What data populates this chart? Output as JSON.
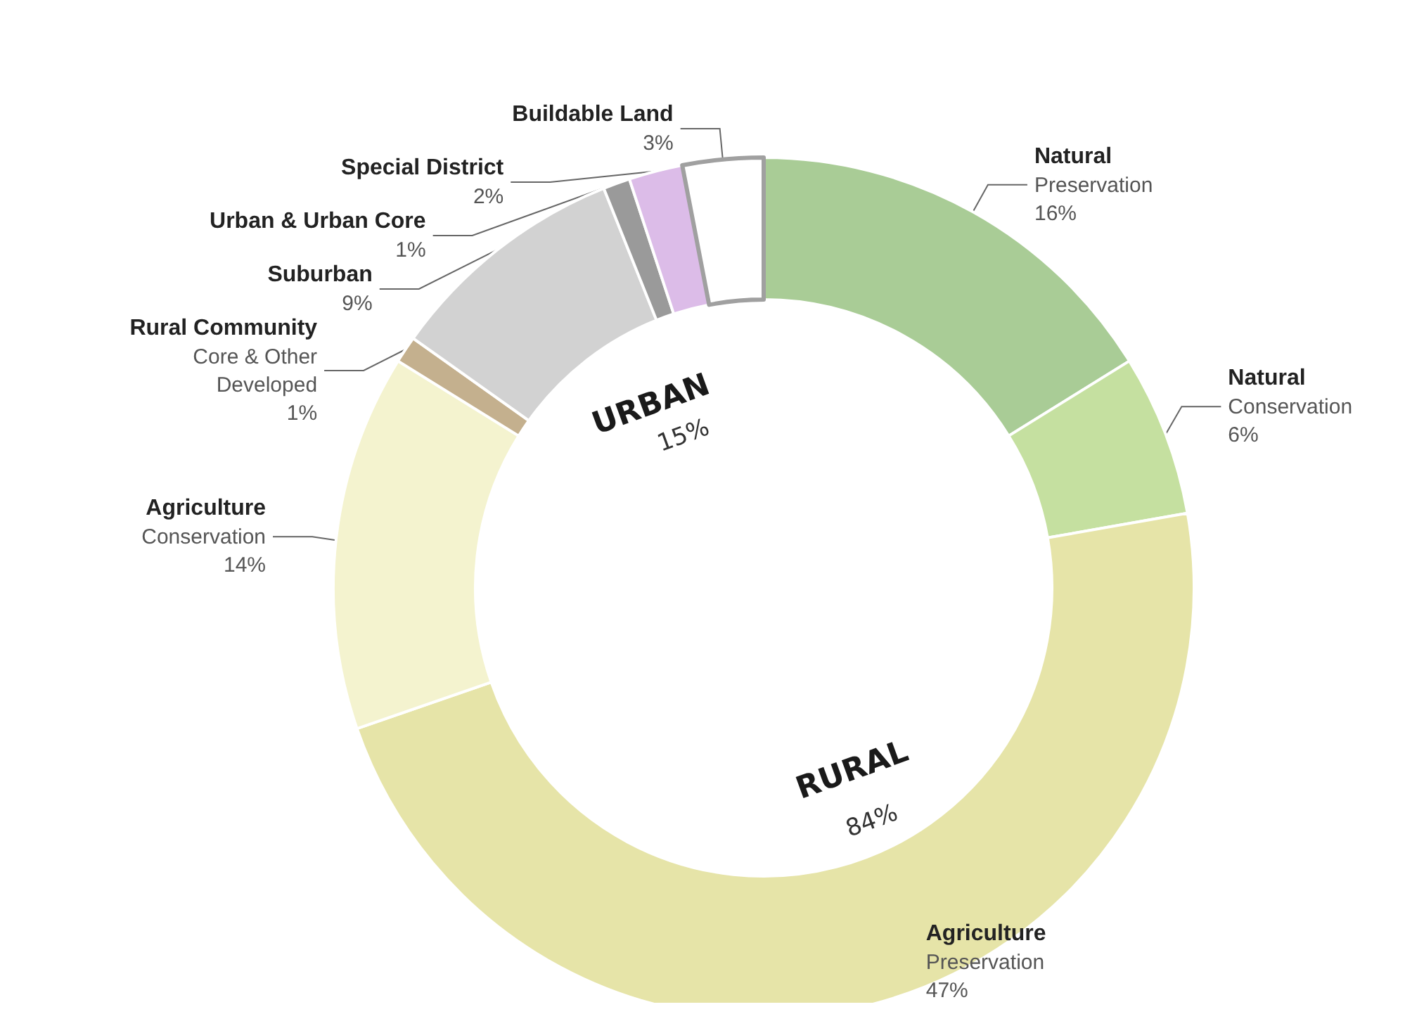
{
  "chart_data": {
    "type": "donut",
    "categories": [
      "Natural\nPreservation",
      "Natural\nConservation",
      "Agriculture\nPreservation",
      "Agriculture\nConservation",
      "Rural Community\nCore & Other\nDeveloped",
      "Suburban",
      "Urban & Urban Core",
      "Special District",
      "Buildable Land"
    ],
    "values": [
      16,
      6,
      47,
      14,
      1,
      9,
      1,
      2,
      3
    ],
    "value_labels": [
      "16%",
      "6%",
      "47%",
      "14%",
      "1%",
      "9%",
      "1%",
      "2%",
      "3%"
    ],
    "colors": [
      "#a9cc96",
      "#c5e0a0",
      "#e6e4a8",
      "#f4f3cf",
      "#c4b08e",
      "#d2d2d2",
      "#9a9a9a",
      "#dcbce8",
      "#ffffff"
    ],
    "annotations": [
      "URBAN",
      "15%",
      "RURAL",
      "84%"
    ],
    "legend": false
  }
}
